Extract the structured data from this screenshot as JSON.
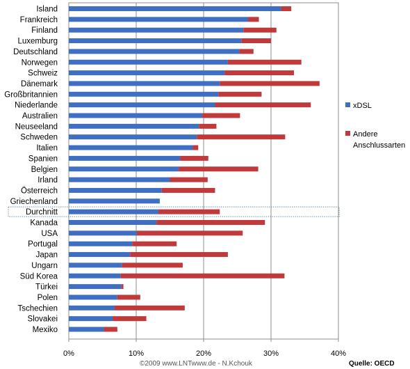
{
  "chart_data": {
    "type": "bar",
    "orientation": "horizontal",
    "stacked": true,
    "categories": [
      "Island",
      "Frankreich",
      "Finland",
      "Luxemburg",
      "Deutschland",
      "Norwegen",
      "Schweiz",
      "Dänemark",
      "Großbritannien",
      "Niederlande",
      "Australien",
      "Neuseeland",
      "Schweden",
      "Italien",
      "Spanien",
      "Belgien",
      "Irland",
      "Österreich",
      "Griechenland",
      "Durchnitt",
      "Kanada",
      "USA",
      "Portugal",
      "Japan",
      "Ungarn",
      "Süd Korea",
      "Türkei",
      "Polen",
      "Tschechien",
      "Slovakei",
      "Mexiko"
    ],
    "highlighted_category": "Durchnitt",
    "series": [
      {
        "name": "xDSL",
        "color": "#3f6fc3",
        "values": [
          31.5,
          26.6,
          25.9,
          25.6,
          25.3,
          23.6,
          23.1,
          22.4,
          22.2,
          21.7,
          19.8,
          19.3,
          19.0,
          18.4,
          16.5,
          16.3,
          15.0,
          13.8,
          13.5,
          13.3,
          13.0,
          10.1,
          9.4,
          9.1,
          7.9,
          7.7,
          7.8,
          7.2,
          6.8,
          6.5,
          5.2
        ]
      },
      {
        "name": "Andere Anschlussarten",
        "color": "#c0393b",
        "values": [
          1.5,
          1.6,
          4.9,
          4.4,
          2.1,
          10.9,
          10.3,
          14.8,
          6.4,
          14.2,
          5.6,
          2.6,
          13.1,
          0.8,
          4.2,
          11.8,
          5.6,
          7.9,
          0.0,
          9.1,
          16.1,
          15.7,
          6.6,
          14.5,
          9.0,
          24.3,
          0.3,
          3.4,
          10.4,
          5.0,
          2.0
        ]
      }
    ],
    "xlim": [
      0,
      40
    ],
    "xticks": [
      "0%",
      "10%",
      "20%",
      "30%",
      "40%"
    ],
    "grid": true,
    "legend_placement": "right",
    "xlabel": "",
    "ylabel": ""
  },
  "footer": {
    "credit": "©2009 www.LNTwww.de - N.Kchouk",
    "source": "Quelle: OECD"
  }
}
